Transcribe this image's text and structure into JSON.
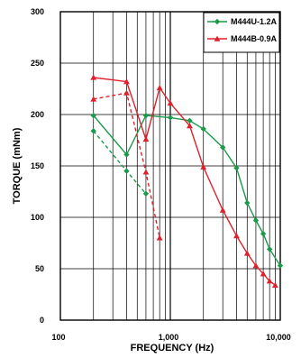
{
  "chart_data": {
    "type": "line",
    "xlabel": "FREQUENCY (Hz)",
    "ylabel": "TORQUE (mNm)",
    "x_scale": "log",
    "xlim": [
      100,
      10000
    ],
    "ylim": [
      0,
      300
    ],
    "x_ticks": [
      "100",
      "1,000",
      "10,000"
    ],
    "x_tick_values": [
      100,
      1000,
      10000
    ],
    "y_ticks": [
      "0",
      "50",
      "100",
      "150",
      "200",
      "250",
      "300"
    ],
    "y_tick_values": [
      0,
      50,
      100,
      150,
      200,
      250,
      300
    ],
    "grid": true,
    "legend_position": "top-right",
    "series": [
      {
        "name": "M444U-1.2A",
        "color": "#1a9a4a",
        "marker": "diamond",
        "style": "solid",
        "points": [
          [
            200,
            199
          ],
          [
            400,
            161
          ],
          [
            600,
            199
          ],
          [
            1000,
            197
          ],
          [
            1500,
            194
          ],
          [
            2000,
            186
          ],
          [
            3000,
            168
          ],
          [
            4000,
            148
          ],
          [
            5000,
            114
          ],
          [
            6000,
            97
          ],
          [
            7000,
            84
          ],
          [
            8000,
            69
          ],
          [
            10000,
            53
          ]
        ]
      },
      {
        "name": "",
        "color": "#1a9a4a",
        "marker": "diamond",
        "style": "dashed",
        "points": [
          [
            200,
            184
          ],
          [
            400,
            145
          ],
          [
            600,
            123
          ]
        ]
      },
      {
        "name": "M444B-0.9A",
        "color": "#e0202a",
        "marker": "triangle",
        "style": "solid",
        "points": [
          [
            200,
            236
          ],
          [
            400,
            232
          ],
          [
            600,
            176
          ],
          [
            800,
            226
          ],
          [
            1000,
            211
          ],
          [
            1500,
            189
          ],
          [
            2000,
            149
          ],
          [
            3000,
            107
          ],
          [
            4000,
            82
          ],
          [
            5000,
            65
          ],
          [
            6000,
            53
          ],
          [
            7000,
            45
          ],
          [
            8000,
            38
          ],
          [
            9000,
            34
          ]
        ]
      },
      {
        "name": "",
        "color": "#e0202a",
        "marker": "triangle",
        "style": "dashed",
        "points": [
          [
            200,
            215
          ],
          [
            400,
            221
          ],
          [
            600,
            144
          ],
          [
            800,
            80
          ]
        ]
      }
    ]
  }
}
